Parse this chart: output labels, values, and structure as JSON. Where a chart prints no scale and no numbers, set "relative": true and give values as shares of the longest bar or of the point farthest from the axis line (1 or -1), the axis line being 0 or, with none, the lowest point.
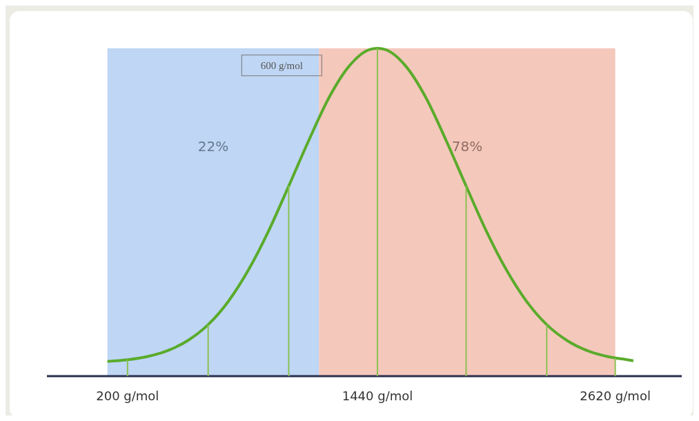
{
  "chart_data": {
    "type": "line",
    "relative": true,
    "xlim": [
      -200,
      2950
    ],
    "xticks": [
      {
        "value": 200,
        "label": "200 g/mol"
      },
      {
        "value": 1440,
        "label": "1440 g/mol"
      },
      {
        "value": 2620,
        "label": "2620 g/mol"
      }
    ],
    "marker": "none",
    "line_style": "solid",
    "series": [
      {
        "color": "#5aab2b",
        "x": [
          100,
          200,
          300,
          400,
          500,
          600,
          700,
          800,
          900,
          1000,
          1100,
          1200,
          1300,
          1400,
          1440,
          1480,
          1580,
          1680,
          1780,
          1880,
          1980,
          2080,
          2180,
          2280,
          2380,
          2480,
          2580,
          2680,
          2710
        ],
        "values": [
          0.045,
          0.05,
          0.06,
          0.078,
          0.109,
          0.157,
          0.228,
          0.324,
          0.443,
          0.58,
          0.72,
          0.85,
          0.946,
          0.996,
          1,
          0.996,
          0.946,
          0.85,
          0.72,
          0.58,
          0.443,
          0.324,
          0.228,
          0.157,
          0.109,
          0.078,
          0.06,
          0.05,
          0.047
        ]
      },
      {
        "type": "bar",
        "color": "#8cc152",
        "x": [
          200,
          600,
          1000,
          1440,
          1880,
          2280,
          2620
        ],
        "values": [
          0.05,
          0.157,
          0.58,
          1,
          0.58,
          0.157,
          0.055
        ]
      }
    ],
    "bands": [
      {
        "axis": "x",
        "from": 100,
        "to": 1150,
        "label": "22%",
        "color": "#a9c8f0"
      },
      {
        "axis": "x",
        "from": 1150,
        "to": 2620,
        "label": "78%",
        "color": "#f2b5a5"
      }
    ],
    "annotations": [
      {
        "text": "600 g/mol",
        "x": 1150,
        "y": 0.95
      }
    ]
  }
}
